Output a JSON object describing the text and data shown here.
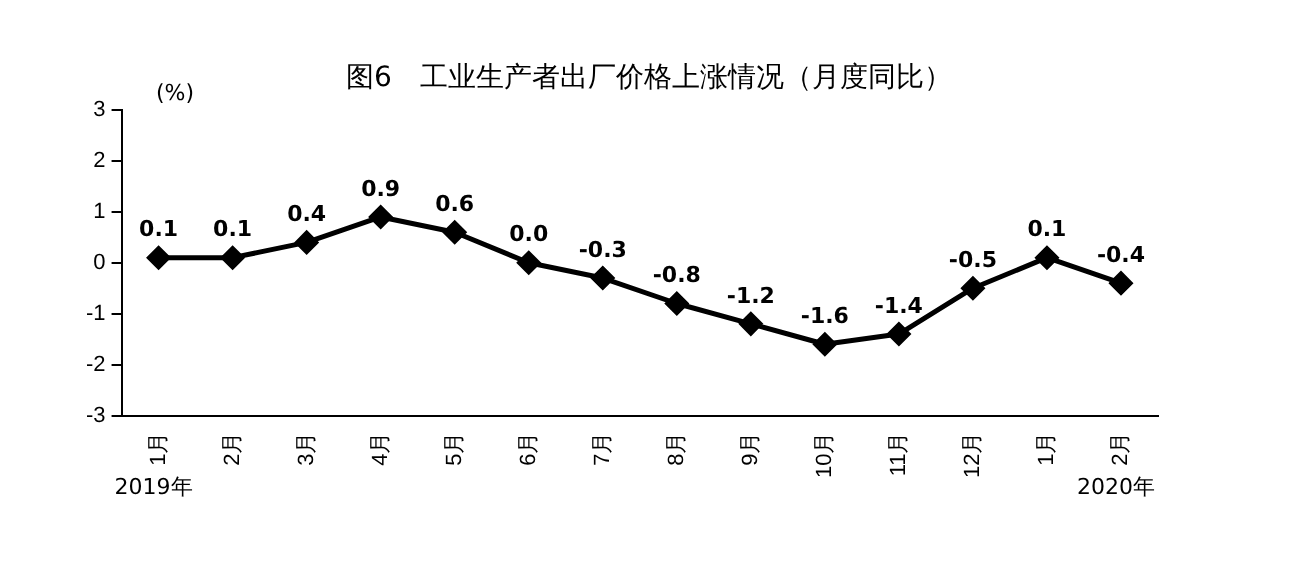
{
  "chart_data": {
    "type": "line",
    "title": "图6　工业生产者出厂价格上涨情况（月度同比）",
    "ylabel": "(%)",
    "categories": [
      "1月",
      "2月",
      "3月",
      "4月",
      "5月",
      "6月",
      "7月",
      "8月",
      "9月",
      "10月",
      "11月",
      "12月",
      "1月",
      "2月"
    ],
    "series": [
      {
        "color": "#000000",
        "values": [
          0.1,
          0.1,
          0.4,
          0.9,
          0.6,
          0.0,
          -0.3,
          -0.8,
          -1.2,
          -1.6,
          -1.4,
          -0.5,
          0.1,
          -0.4
        ],
        "value_labels": [
          "0.1",
          "0.1",
          "0.4",
          "0.9",
          "0.6",
          "0.0",
          "-0.3",
          "-0.8",
          "-1.2",
          "-1.6",
          "-1.4",
          "-0.5",
          "0.1",
          "-0.4"
        ]
      }
    ],
    "ylim": [
      -3,
      3
    ],
    "yticks": [
      -3,
      -2,
      -1,
      0,
      1,
      2,
      3
    ],
    "grid": false,
    "legend": false,
    "marker": "diamond",
    "line_style": "solid",
    "annotations": [
      "2019年",
      "2020年"
    ]
  }
}
